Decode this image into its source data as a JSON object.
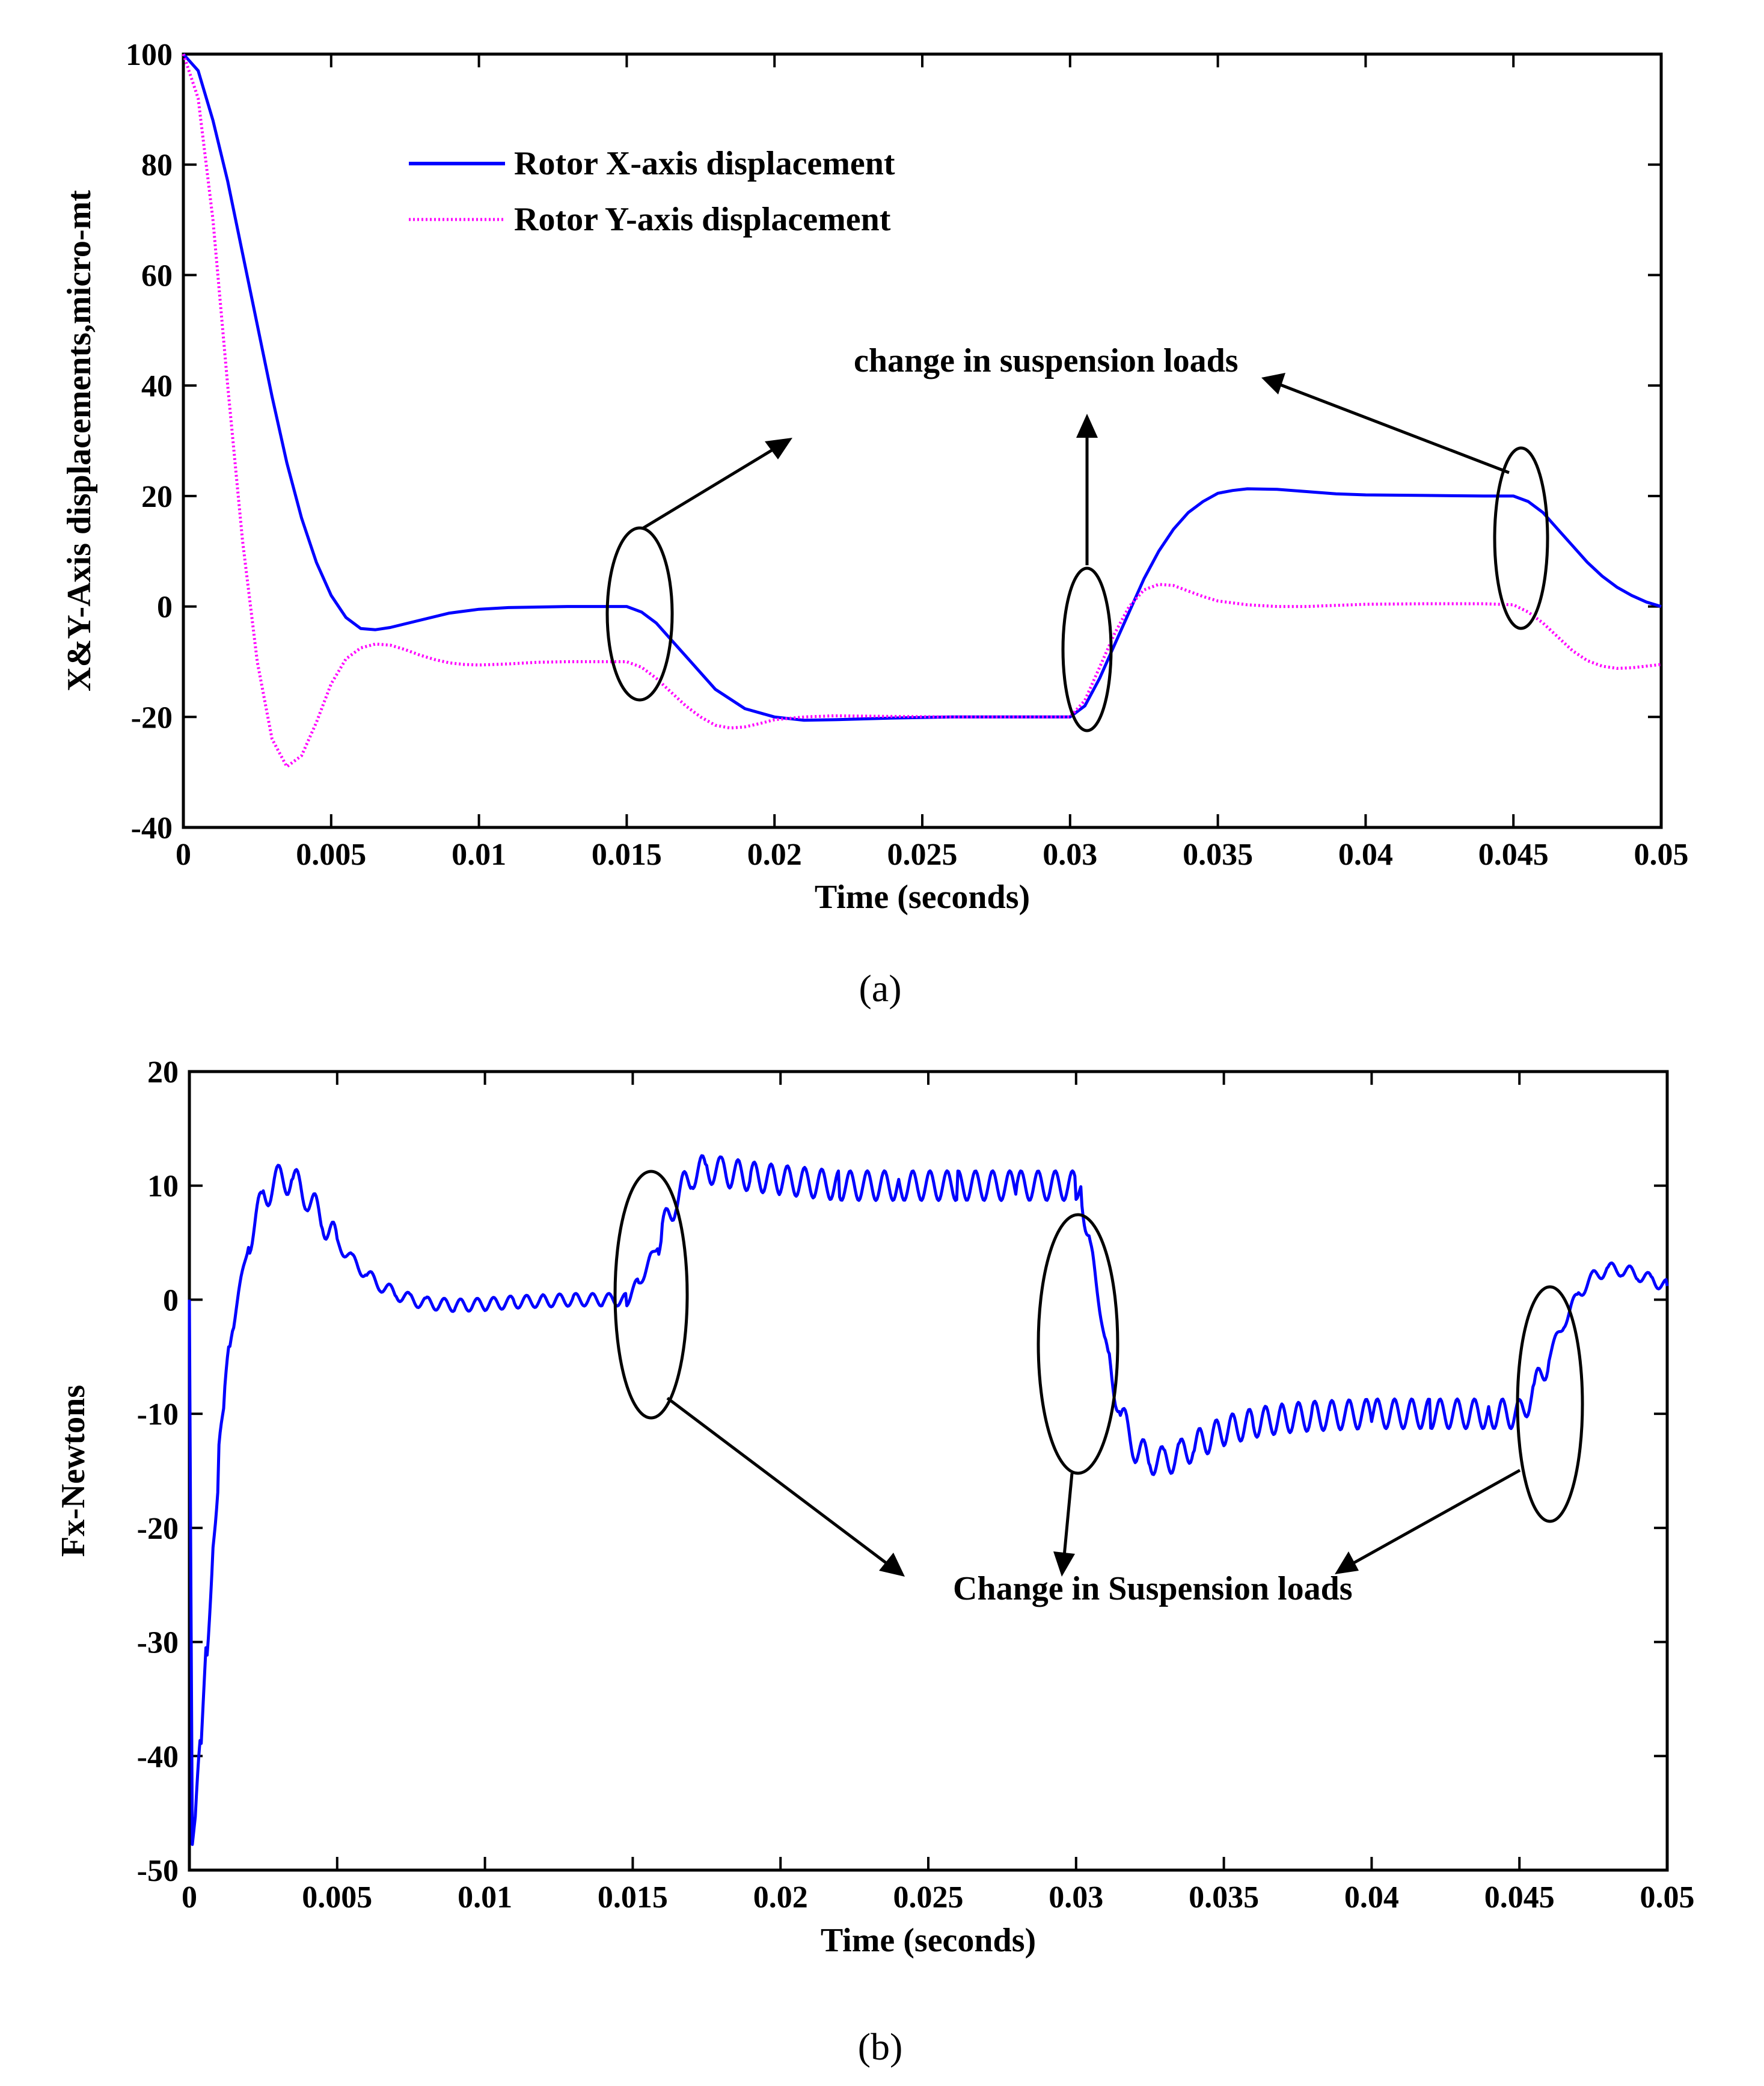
{
  "chart_data": [
    {
      "type": "line",
      "panel": "(a)",
      "xlabel": "Time (seconds)",
      "ylabel": "X&Y-Axis displacements,micro-mt",
      "xlim": [
        0,
        0.05
      ],
      "ylim": [
        -40,
        100
      ],
      "xticks": [
        0,
        0.005,
        0.01,
        0.015,
        0.02,
        0.025,
        0.03,
        0.035,
        0.04,
        0.045,
        0.05
      ],
      "xtick_labels": [
        "0",
        "0.005",
        "0.01",
        "0.015",
        "0.02",
        "0.025",
        "0.03",
        "0.035",
        "0.04",
        "0.045",
        "0.05"
      ],
      "yticks": [
        -40,
        -20,
        0,
        20,
        40,
        60,
        80,
        100
      ],
      "ytick_labels": [
        "-40",
        "-20",
        "0",
        "20",
        "40",
        "60",
        "80",
        "100"
      ],
      "legend_position": "top-left",
      "series": [
        {
          "name": "Rotor X-axis displacement",
          "color": "#0000ff",
          "style": "solid",
          "x": [
            0,
            0.0005,
            0.001,
            0.0015,
            0.002,
            0.0025,
            0.003,
            0.0035,
            0.004,
            0.0045,
            0.005,
            0.0055,
            0.006,
            0.0065,
            0.007,
            0.008,
            0.009,
            0.01,
            0.011,
            0.012,
            0.013,
            0.014,
            0.015,
            0.0155,
            0.016,
            0.0165,
            0.017,
            0.0175,
            0.018,
            0.019,
            0.02,
            0.021,
            0.022,
            0.024,
            0.026,
            0.028,
            0.03,
            0.0305,
            0.031,
            0.0315,
            0.032,
            0.0325,
            0.033,
            0.0335,
            0.034,
            0.0345,
            0.035,
            0.0355,
            0.036,
            0.037,
            0.038,
            0.039,
            0.04,
            0.042,
            0.044,
            0.045,
            0.0455,
            0.046,
            0.0465,
            0.047,
            0.0475,
            0.048,
            0.0485,
            0.049,
            0.0495,
            0.05
          ],
          "y": [
            100,
            97,
            88,
            77,
            64,
            51,
            38,
            26,
            16,
            8,
            2,
            -2,
            -4,
            -4.2,
            -3.8,
            -2.5,
            -1.2,
            -0.5,
            -0.2,
            -0.1,
            0,
            0,
            0,
            -1,
            -3,
            -6,
            -9,
            -12,
            -15,
            -18.5,
            -20,
            -20.6,
            -20.5,
            -20.2,
            -20,
            -20,
            -20,
            -18,
            -13,
            -7,
            -1,
            5,
            10,
            14,
            17,
            19,
            20.5,
            21,
            21.3,
            21.2,
            20.8,
            20.4,
            20.2,
            20.1,
            20,
            20,
            19,
            17,
            14,
            11,
            8,
            5.5,
            3.5,
            2,
            0.8,
            0
          ]
        },
        {
          "name": "Rotor Y-axis displacement",
          "color": "#ff00ff",
          "style": "dotted",
          "x": [
            0,
            0.0005,
            0.001,
            0.0015,
            0.002,
            0.0025,
            0.003,
            0.0035,
            0.004,
            0.0045,
            0.005,
            0.0055,
            0.006,
            0.0065,
            0.007,
            0.0075,
            0.008,
            0.0085,
            0.009,
            0.0095,
            0.01,
            0.011,
            0.012,
            0.013,
            0.014,
            0.015,
            0.0155,
            0.016,
            0.0165,
            0.017,
            0.0175,
            0.018,
            0.0185,
            0.019,
            0.0195,
            0.02,
            0.021,
            0.022,
            0.024,
            0.026,
            0.028,
            0.03,
            0.0305,
            0.031,
            0.0315,
            0.032,
            0.0325,
            0.033,
            0.0335,
            0.034,
            0.0345,
            0.035,
            0.036,
            0.037,
            0.038,
            0.04,
            0.042,
            0.044,
            0.045,
            0.0455,
            0.046,
            0.0465,
            0.047,
            0.0475,
            0.048,
            0.0485,
            0.049,
            0.0495,
            0.05
          ],
          "y": [
            100,
            92,
            70,
            40,
            12,
            -10,
            -24,
            -29,
            -27,
            -21,
            -14,
            -9.5,
            -7.5,
            -6.8,
            -7,
            -7.8,
            -8.8,
            -9.6,
            -10.2,
            -10.5,
            -10.6,
            -10.4,
            -10.1,
            -10,
            -10,
            -10,
            -11,
            -13,
            -15.5,
            -18,
            -20,
            -21.5,
            -22,
            -21.8,
            -21.2,
            -20.5,
            -20,
            -19.8,
            -19.9,
            -20,
            -20,
            -20,
            -17,
            -11,
            -5,
            0,
            3,
            4,
            3.8,
            2.8,
            1.8,
            1,
            0.3,
            0,
            0,
            0.4,
            0.5,
            0.5,
            0.3,
            -1,
            -3,
            -5.5,
            -8,
            -9.8,
            -10.8,
            -11.2,
            -11.1,
            -10.8,
            -10.5
          ]
        }
      ],
      "annotations": [
        {
          "text": "change in suspension loads"
        }
      ]
    },
    {
      "type": "line",
      "panel": "(b)",
      "xlabel": "Time (seconds)",
      "ylabel": "Fx-Newtons",
      "xlim": [
        0,
        0.05
      ],
      "ylim": [
        -50,
        20
      ],
      "xticks": [
        0,
        0.005,
        0.01,
        0.015,
        0.02,
        0.025,
        0.03,
        0.035,
        0.04,
        0.045,
        0.05
      ],
      "xtick_labels": [
        "0",
        "0.005",
        "0.01",
        "0.015",
        "0.02",
        "0.025",
        "0.03",
        "0.035",
        "0.04",
        "0.045",
        "0.05"
      ],
      "yticks": [
        -50,
        -40,
        -30,
        -20,
        -10,
        0,
        10,
        20
      ],
      "ytick_labels": [
        "-50",
        "-40",
        "-30",
        "-20",
        "-10",
        "0",
        "10",
        "20"
      ],
      "series": [
        {
          "name": "Fx",
          "color": "#0000ff",
          "style": "solid-noisy",
          "x": [
            0,
            0.0001,
            0.0002,
            0.0004,
            0.0006,
            0.0008,
            0.001,
            0.0012,
            0.0015,
            0.002,
            0.0025,
            0.003,
            0.0035,
            0.004,
            0.0045,
            0.005,
            0.0055,
            0.006,
            0.0065,
            0.007,
            0.0075,
            0.008,
            0.009,
            0.01,
            0.011,
            0.012,
            0.013,
            0.014,
            0.0148,
            0.0152,
            0.0156,
            0.016,
            0.0165,
            0.017,
            0.0175,
            0.018,
            0.019,
            0.02,
            0.022,
            0.024,
            0.026,
            0.028,
            0.03,
            0.0302,
            0.0306,
            0.031,
            0.0315,
            0.032,
            0.0325,
            0.033,
            0.0335,
            0.034,
            0.035,
            0.036,
            0.037,
            0.038,
            0.04,
            0.042,
            0.044,
            0.045,
            0.0455,
            0.046,
            0.0465,
            0.047,
            0.0475,
            0.048,
            0.0485,
            0.049,
            0.0495,
            0.05
          ],
          "y": [
            0,
            -49,
            -46,
            -38,
            -30,
            -22,
            -14,
            -8,
            -2,
            5,
            9,
            10.5,
            10.5,
            9,
            7,
            5,
            3.5,
            2.2,
            1.2,
            0.5,
            0,
            -0.3,
            -0.5,
            -0.4,
            -0.2,
            -0.1,
            0,
            0,
            0,
            1.5,
            3.5,
            6,
            9,
            11,
            11.5,
            11.2,
            10.8,
            10.5,
            10,
            10,
            10,
            10,
            10,
            9,
            3,
            -4,
            -10,
            -13,
            -14,
            -14.2,
            -13.6,
            -12.8,
            -11.5,
            -10.8,
            -10.4,
            -10.2,
            -10,
            -10,
            -10,
            -10,
            -8,
            -5,
            -2,
            0.5,
            2,
            2.7,
            2.6,
            2.2,
            1.7,
            1.2
          ]
        }
      ],
      "annotations": [
        {
          "text": "Change in Suspension loads"
        }
      ]
    }
  ],
  "captions": {
    "a": "(a)",
    "b": "(b)"
  },
  "colors": {
    "blue": "#0000ff",
    "magenta": "#ff00ff",
    "axis": "#000000"
  }
}
